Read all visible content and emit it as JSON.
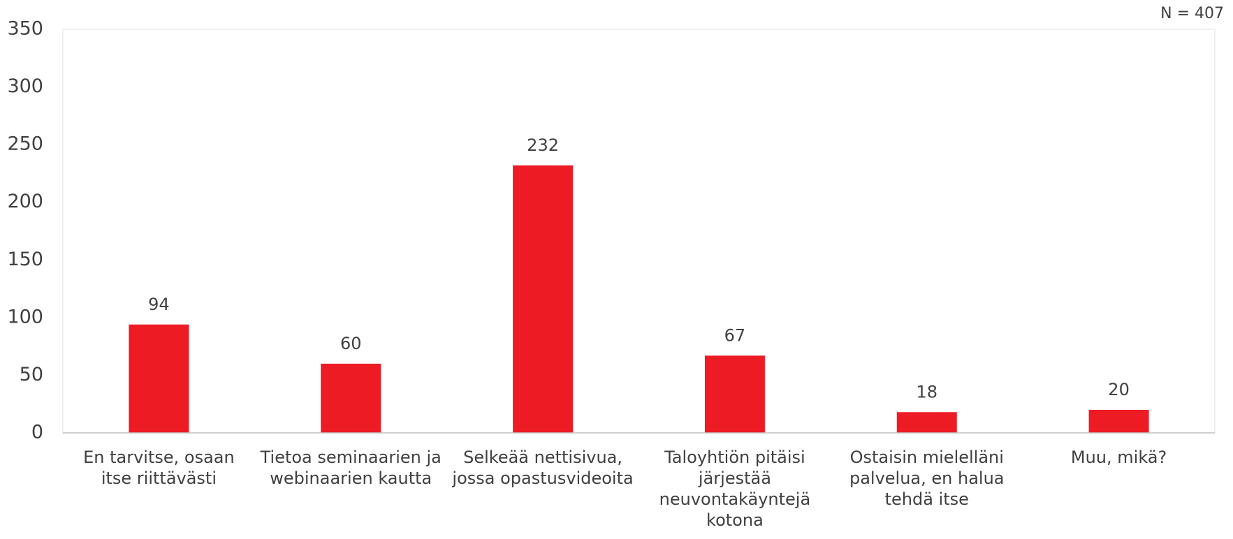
{
  "chart_data": {
    "type": "bar",
    "note": "N = 407",
    "categories": [
      "En tarvitse, osaan itse riittävästi",
      "Tietoa seminaarien ja webinaarien kautta",
      "Selkeää nettisivua, jossa opastusvideoita",
      "Taloyhtiön pitäisi järjestää neuvontakäyntejä kotona",
      "Ostaisin mielelläni palvelua, en halua tehdä itse",
      "Muu, mikä?"
    ],
    "values": [
      94,
      60,
      232,
      67,
      18,
      20
    ],
    "color": "#ed1c24",
    "ylim": [
      0,
      350
    ],
    "yticks": [
      0,
      50,
      100,
      150,
      200,
      250,
      300,
      350
    ],
    "grid": false
  }
}
